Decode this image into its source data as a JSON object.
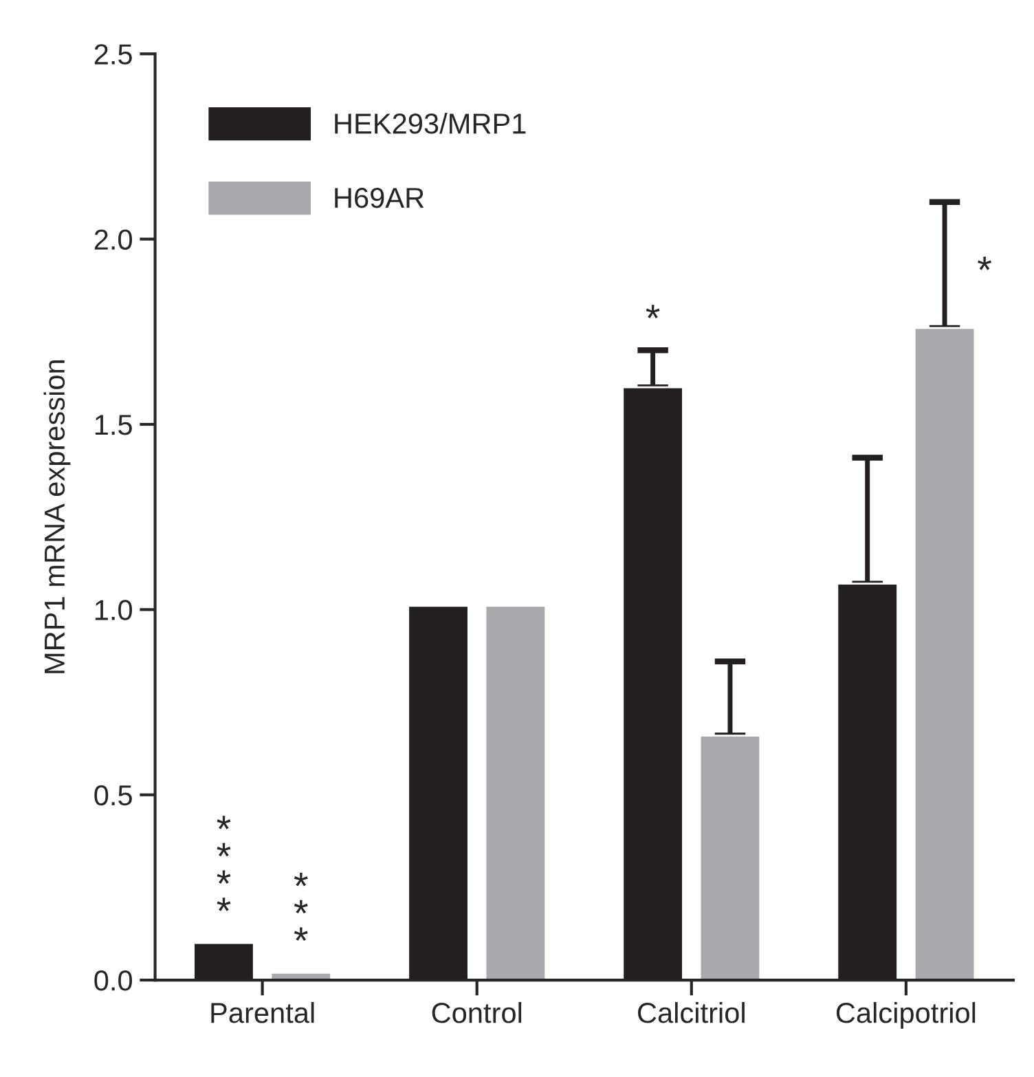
{
  "chart_data": {
    "type": "bar",
    "ylabel": "MRP1 mRNA expression",
    "categories": [
      "Parental",
      "Control",
      "Calcitriol",
      "Calcipotriol"
    ],
    "series": [
      {
        "name": "HEK293/MRP1",
        "color": "#231f20",
        "values": [
          0.1,
          1.01,
          1.6,
          1.07
        ],
        "value_labels": [
          "****",
          null,
          "*",
          null
        ],
        "errors": [
          null,
          null,
          [
            1.6,
            1.7
          ],
          [
            1.07,
            1.41
          ]
        ]
      },
      {
        "name": "H69AR",
        "color": "#a7a9ac",
        "values": [
          0.02,
          1.01,
          0.66,
          1.76
        ],
        "value_labels": [
          "***",
          null,
          null,
          "*"
        ],
        "errors": [
          null,
          null,
          [
            0.66,
            0.86
          ],
          [
            1.76,
            2.1
          ]
        ]
      }
    ],
    "ylim": [
      0,
      2.5
    ],
    "yticks": [
      {
        "value": 0,
        "label": "0.0"
      },
      {
        "value": 0.5,
        "label": "0.5"
      },
      {
        "value": 1,
        "label": "1.0"
      },
      {
        "value": 1.5,
        "label": "1.5"
      },
      {
        "value": 2,
        "label": "2.0"
      },
      {
        "value": 2.5,
        "label": "2.5"
      }
    ],
    "grid": false,
    "legend": "top left"
  }
}
